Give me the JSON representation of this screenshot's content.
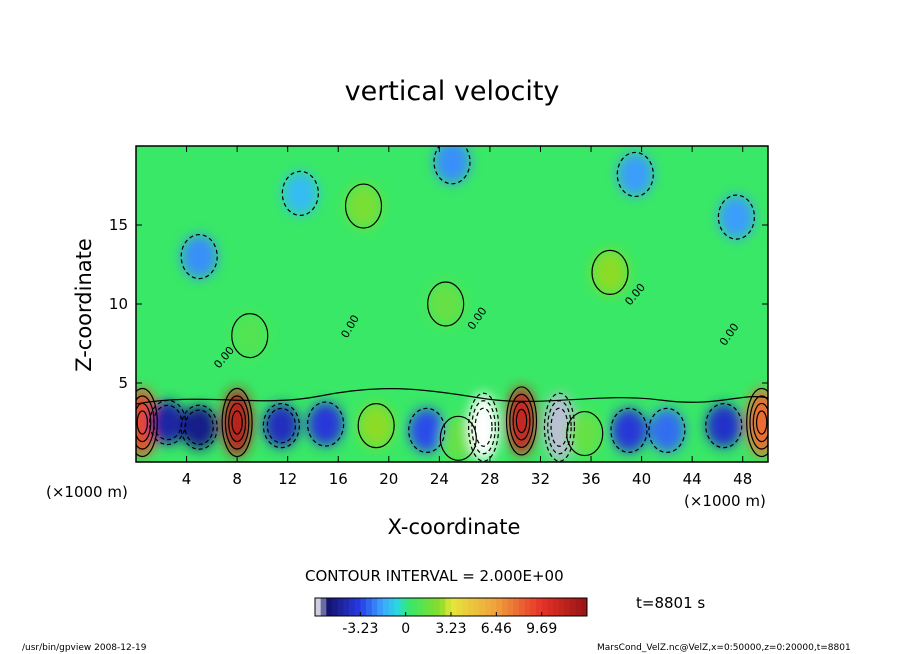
{
  "chart_data": {
    "type": "heatmap",
    "title": "vertical velocity",
    "xlabel": "X-coordinate",
    "ylabel": "Z-coordinate",
    "x_unit": "(×1000 m)",
    "x_ticks": [
      4,
      8,
      12,
      16,
      20,
      24,
      28,
      32,
      36,
      40,
      44,
      48
    ],
    "y_ticks": [
      5,
      10,
      15
    ],
    "xlim": [
      0,
      50
    ],
    "ylim": [
      0,
      20
    ],
    "contour_label": "0.00",
    "contour_interval": "CONTOUR INTERVAL = 2.000E+00",
    "colorbar": {
      "ticks": [
        "-3.23",
        "0",
        "3.23",
        "6.46",
        "9.69"
      ],
      "tick_values": [
        -3.23,
        0,
        3.23,
        6.46,
        9.69
      ],
      "range": [
        -6.46,
        12.92
      ]
    },
    "time_label": "t=8801 s",
    "cells": [
      {
        "x": 0.5,
        "z": 2.5,
        "value": 9.0
      },
      {
        "x": 2.5,
        "z": 2.5,
        "value": -4.5
      },
      {
        "x": 5.0,
        "z": 2.2,
        "value": -5.0
      },
      {
        "x": 8.0,
        "z": 2.5,
        "value": 11.5
      },
      {
        "x": 11.5,
        "z": 2.3,
        "value": -4.0
      },
      {
        "x": 15.0,
        "z": 2.4,
        "value": -3.5
      },
      {
        "x": 19.0,
        "z": 2.3,
        "value": 2.5
      },
      {
        "x": 23.0,
        "z": 2.0,
        "value": -3.0
      },
      {
        "x": 25.5,
        "z": 1.5,
        "value": 1.5
      },
      {
        "x": 27.5,
        "z": 2.2,
        "value": -6.5
      },
      {
        "x": 30.5,
        "z": 2.6,
        "value": 11.0
      },
      {
        "x": 33.5,
        "z": 2.2,
        "value": -6.2
      },
      {
        "x": 35.5,
        "z": 1.8,
        "value": 1.5
      },
      {
        "x": 39.0,
        "z": 2.0,
        "value": -3.5
      },
      {
        "x": 42.0,
        "z": 2.0,
        "value": -2.5
      },
      {
        "x": 46.5,
        "z": 2.3,
        "value": -3.8
      },
      {
        "x": 49.5,
        "z": 2.5,
        "value": 8.0
      },
      {
        "x": 18.0,
        "z": 16.2,
        "value": 2.0
      },
      {
        "x": 37.5,
        "z": 12.0,
        "value": 2.5
      },
      {
        "x": 24.5,
        "z": 10.0,
        "value": 1.5
      },
      {
        "x": 5.0,
        "z": 13.0,
        "value": -2.0
      },
      {
        "x": 25.0,
        "z": 19.0,
        "value": -2.0
      },
      {
        "x": 39.5,
        "z": 18.2,
        "value": -1.8
      },
      {
        "x": 47.5,
        "z": 15.5,
        "value": -1.8
      },
      {
        "x": 9.0,
        "z": 8.0,
        "value": 1.0
      },
      {
        "x": 13.0,
        "z": 17.0,
        "value": -1.2
      }
    ]
  },
  "footer": {
    "left": "/usr/bin/gpview   2008-12-19",
    "right": "MarsCond_VelZ.nc@VelZ,x=0:50000,z=0:20000,t=8801"
  }
}
